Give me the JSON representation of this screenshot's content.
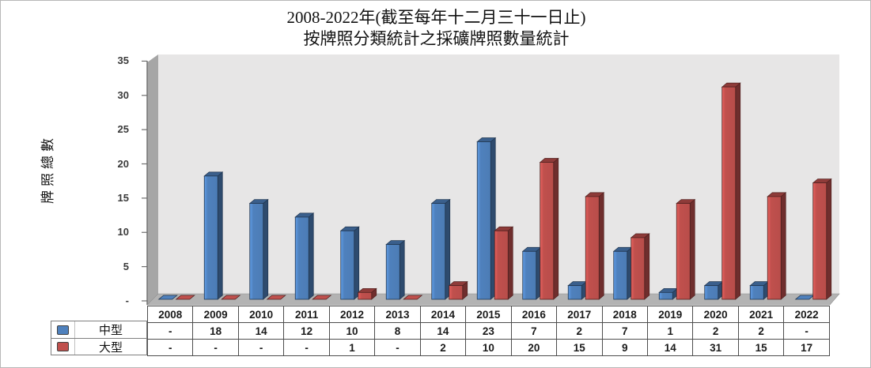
{
  "title": {
    "line1": "2008-2022年(截至每年十二月三十一日止)",
    "line2": "按牌照分類統計之採礦牌照數量統計"
  },
  "chart_data": {
    "type": "bar",
    "title": "2008-2022年(截至每年十二月三十一日止) 按牌照分類統計之採礦牌照數量統計",
    "ylabel": "牌照總數",
    "xlabel": "",
    "ylim": [
      0,
      35
    ],
    "ytick_step": 5,
    "zero_tick_label": "-",
    "grid": false,
    "style": "3d-bars",
    "legend_position": "left-of-data-table",
    "categories": [
      "2008",
      "2009",
      "2010",
      "2011",
      "2012",
      "2013",
      "2014",
      "2015",
      "2016",
      "2017",
      "2018",
      "2019",
      "2020",
      "2021",
      "2022"
    ],
    "series": [
      {
        "name": "中型",
        "color": "#4f81bd",
        "values": [
          null,
          18,
          14,
          12,
          10,
          8,
          14,
          23,
          7,
          2,
          7,
          1,
          2,
          2,
          null
        ]
      },
      {
        "name": "大型",
        "color": "#c0504d",
        "values": [
          null,
          null,
          null,
          null,
          1,
          null,
          2,
          10,
          20,
          15,
          9,
          14,
          31,
          15,
          17
        ]
      }
    ],
    "missing_display": "-"
  },
  "table": {
    "columns": [
      "2008",
      "2009",
      "2010",
      "2011",
      "2012",
      "2013",
      "2014",
      "2015",
      "2016",
      "2017",
      "2018",
      "2019",
      "2020",
      "2021",
      "2022"
    ],
    "rows": [
      {
        "label": "中型",
        "cells": [
          "-",
          "18",
          "14",
          "12",
          "10",
          "8",
          "14",
          "23",
          "7",
          "2",
          "7",
          "1",
          "2",
          "2",
          "-"
        ]
      },
      {
        "label": "大型",
        "cells": [
          "-",
          "-",
          "-",
          "-",
          "1",
          "-",
          "2",
          "10",
          "20",
          "15",
          "9",
          "14",
          "31",
          "15",
          "17"
        ]
      }
    ]
  },
  "colors": {
    "plot_bg": "#e7e6e6",
    "wall": "#a6a6a6",
    "floor": "#b3b3b3",
    "axis": "#6f6f6f",
    "frame_border": "#b7b7b7",
    "series_blue": "#4f81bd",
    "series_red": "#c0504d"
  }
}
